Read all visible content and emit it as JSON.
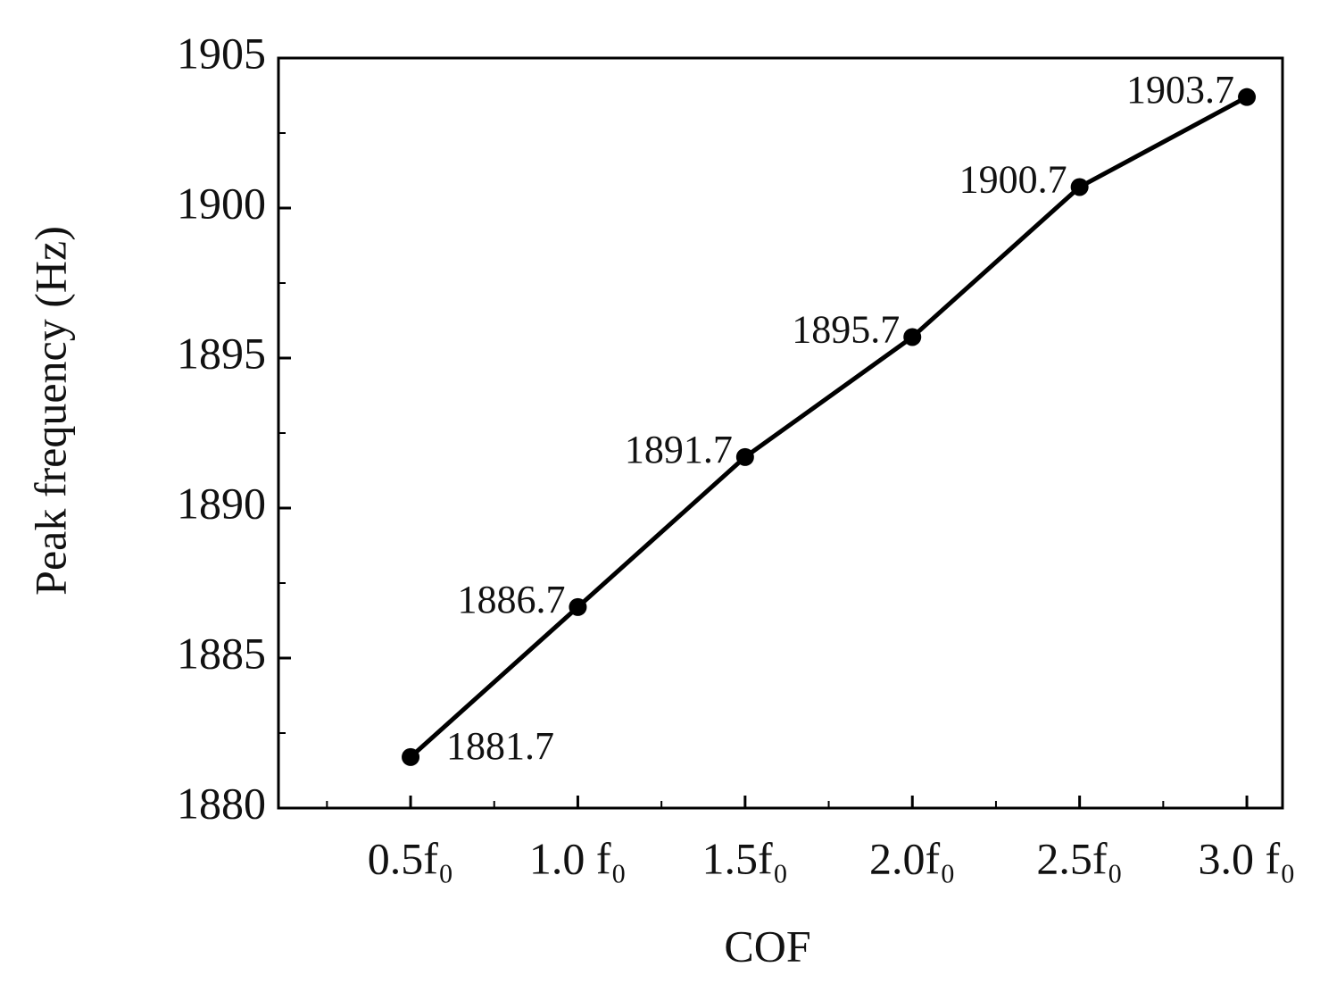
{
  "chart_data": {
    "type": "line",
    "x_label": "COF",
    "y_label": "Peak frequency (Hz)",
    "categories": [
      "0.5f₀",
      "1.0 f₀",
      "1.5f₀",
      "2.0f₀",
      "2.5f₀",
      "3.0 f₀"
    ],
    "series": [
      {
        "color": "#000000",
        "values": [
          1881.7,
          1886.7,
          1891.7,
          1895.7,
          1900.7,
          1903.7
        ]
      }
    ],
    "ylim": [
      1880,
      1905
    ],
    "yticks": [
      1880,
      1885,
      1890,
      1895,
      1900,
      1905
    ]
  }
}
